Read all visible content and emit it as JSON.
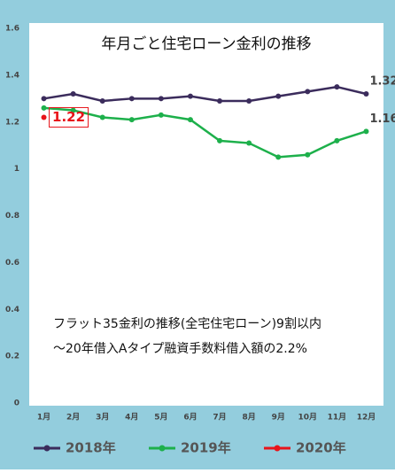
{
  "chart_data": {
    "type": "line",
    "title": "年月ごと住宅ローン金利の推移",
    "annotation": [
      "フラット35金利の推移(全宅住宅ローン)9割以内",
      "～20年借入Aタイプ融資手数料借入額の2.2%"
    ],
    "categories": [
      "1月",
      "2月",
      "3月",
      "4月",
      "5月",
      "6月",
      "7月",
      "8月",
      "9月",
      "10月",
      "11月",
      "12月"
    ],
    "series": [
      {
        "name": "2018年",
        "color": "#3b2c5c",
        "values": [
          1.3,
          1.32,
          1.29,
          1.3,
          1.3,
          1.31,
          1.29,
          1.29,
          1.31,
          1.33,
          1.35,
          1.32
        ]
      },
      {
        "name": "2019年",
        "color": "#1db04b",
        "values": [
          1.26,
          1.25,
          1.22,
          1.21,
          1.23,
          1.21,
          1.12,
          1.11,
          1.05,
          1.06,
          1.12,
          1.16
        ]
      },
      {
        "name": "2020年",
        "color": "#e8141a",
        "values": [
          1.22,
          null,
          null,
          null,
          null,
          null,
          null,
          null,
          null,
          null,
          null,
          null
        ]
      }
    ],
    "ylim": [
      0,
      1.6
    ],
    "yticks": [
      0,
      0.2,
      0.4,
      0.6,
      0.8,
      1,
      1.2,
      1.4,
      1.6
    ],
    "grid": false
  }
}
